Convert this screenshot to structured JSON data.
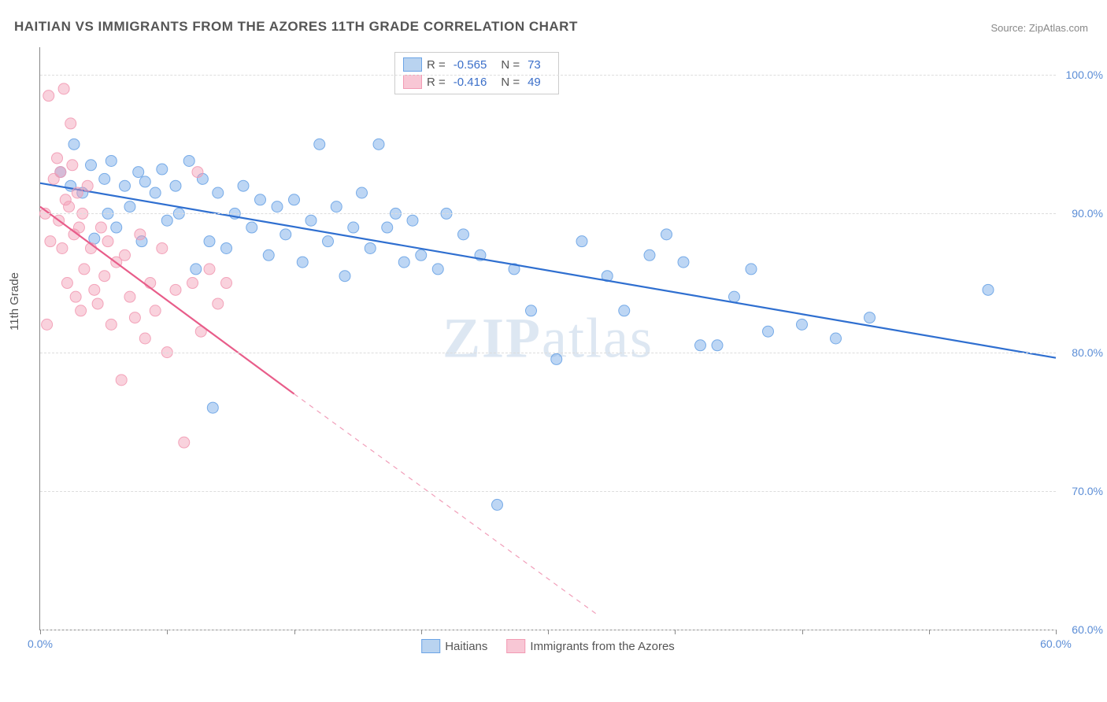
{
  "title": "HAITIAN VS IMMIGRANTS FROM THE AZORES 11TH GRADE CORRELATION CHART",
  "source_label": "Source: ZipAtlas.com",
  "ylabel": "11th Grade",
  "watermark": {
    "a": "ZIP",
    "b": "atlas"
  },
  "chart": {
    "type": "scatter",
    "background_color": "#ffffff",
    "grid_color": "#dddddd",
    "axis_color": "#888888",
    "xlim": [
      0,
      60
    ],
    "ylim": [
      60,
      102
    ],
    "ytick_step": 10,
    "yticks": [
      60,
      70,
      80,
      90,
      100
    ],
    "ytick_labels": [
      "60.0%",
      "70.0%",
      "80.0%",
      "90.0%",
      "100.0%"
    ],
    "xticks": [
      0,
      7.5,
      15,
      22.5,
      30,
      37.5,
      45,
      52.5,
      60
    ],
    "xtick_labels": [
      "0.0%",
      "",
      "",
      "",
      "",
      "",
      "",
      "",
      "60.0%"
    ],
    "label_fontsize": 14,
    "tick_color": "#5b8dd6",
    "marker_radius": 7,
    "marker_opacity": 0.45,
    "marker_stroke_opacity": 0.9,
    "line_width": 2.2
  },
  "series": [
    {
      "name": "Haitians",
      "color": "#6ca4e6",
      "line_color": "#2f6fd0",
      "swatch_fill": "#b9d3f0",
      "swatch_border": "#6ca4e6",
      "R": "-0.565",
      "N": "73",
      "trend": {
        "x1": 0,
        "y1": 92.2,
        "x2": 60,
        "y2": 79.6,
        "dashed_from_x": 60
      },
      "points": [
        [
          1.2,
          93.0
        ],
        [
          1.8,
          92.0
        ],
        [
          2.0,
          95.0
        ],
        [
          2.5,
          91.5
        ],
        [
          3.0,
          93.5
        ],
        [
          3.2,
          88.2
        ],
        [
          3.8,
          92.5
        ],
        [
          4.0,
          90.0
        ],
        [
          4.2,
          93.8
        ],
        [
          4.5,
          89.0
        ],
        [
          5.0,
          92.0
        ],
        [
          5.3,
          90.5
        ],
        [
          5.8,
          93.0
        ],
        [
          6.0,
          88.0
        ],
        [
          6.2,
          92.3
        ],
        [
          6.8,
          91.5
        ],
        [
          7.2,
          93.2
        ],
        [
          7.5,
          89.5
        ],
        [
          8.0,
          92.0
        ],
        [
          8.2,
          90.0
        ],
        [
          8.8,
          93.8
        ],
        [
          9.2,
          86.0
        ],
        [
          9.6,
          92.5
        ],
        [
          10.0,
          88.0
        ],
        [
          10.5,
          91.5
        ],
        [
          11.0,
          87.5
        ],
        [
          11.5,
          90.0
        ],
        [
          12.0,
          92.0
        ],
        [
          12.5,
          89.0
        ],
        [
          13.0,
          91.0
        ],
        [
          13.5,
          87.0
        ],
        [
          14.0,
          90.5
        ],
        [
          14.5,
          88.5
        ],
        [
          15.0,
          91.0
        ],
        [
          15.5,
          86.5
        ],
        [
          16.0,
          89.5
        ],
        [
          16.5,
          95.0
        ],
        [
          17.0,
          88.0
        ],
        [
          17.5,
          90.5
        ],
        [
          18.0,
          85.5
        ],
        [
          18.5,
          89.0
        ],
        [
          19.0,
          91.5
        ],
        [
          19.5,
          87.5
        ],
        [
          20.0,
          95.0
        ],
        [
          20.5,
          89.0
        ],
        [
          21.0,
          90.0
        ],
        [
          21.5,
          86.5
        ],
        [
          22.0,
          89.5
        ],
        [
          22.5,
          87.0
        ],
        [
          23.5,
          86.0
        ],
        [
          24.0,
          90.0
        ],
        [
          25.0,
          88.5
        ],
        [
          26.0,
          87.0
        ],
        [
          27.0,
          69.0
        ],
        [
          28.0,
          86.0
        ],
        [
          29.0,
          83.0
        ],
        [
          30.5,
          79.5
        ],
        [
          32.0,
          88.0
        ],
        [
          33.5,
          85.5
        ],
        [
          34.5,
          83.0
        ],
        [
          36.0,
          87.0
        ],
        [
          37.0,
          88.5
        ],
        [
          38.0,
          86.5
        ],
        [
          39.0,
          80.5
        ],
        [
          40.0,
          80.5
        ],
        [
          41.0,
          84.0
        ],
        [
          42.0,
          86.0
        ],
        [
          43.0,
          81.5
        ],
        [
          45.0,
          82.0
        ],
        [
          47.0,
          81.0
        ],
        [
          49.0,
          82.5
        ],
        [
          56.0,
          84.5
        ],
        [
          10.2,
          76.0
        ]
      ]
    },
    {
      "name": "Immigrants from the Azores",
      "color": "#f29bb4",
      "line_color": "#e85d8a",
      "swatch_fill": "#f8c7d5",
      "swatch_border": "#f29bb4",
      "R": "-0.416",
      "N": "49",
      "trend": {
        "x1": 0,
        "y1": 90.5,
        "x2": 15,
        "y2": 77.0,
        "dashed_from_x": 15,
        "x2_ext": 33,
        "y2_ext": 61.0
      },
      "points": [
        [
          0.3,
          90.0
        ],
        [
          0.5,
          98.5
        ],
        [
          0.6,
          88.0
        ],
        [
          0.8,
          92.5
        ],
        [
          1.0,
          94.0
        ],
        [
          1.1,
          89.5
        ],
        [
          1.2,
          93.0
        ],
        [
          1.3,
          87.5
        ],
        [
          1.4,
          99.0
        ],
        [
          1.5,
          91.0
        ],
        [
          1.6,
          85.0
        ],
        [
          1.7,
          90.5
        ],
        [
          1.8,
          96.5
        ],
        [
          1.9,
          93.5
        ],
        [
          2.0,
          88.5
        ],
        [
          2.1,
          84.0
        ],
        [
          2.2,
          91.5
        ],
        [
          2.3,
          89.0
        ],
        [
          2.4,
          83.0
        ],
        [
          2.5,
          90.0
        ],
        [
          2.6,
          86.0
        ],
        [
          2.8,
          92.0
        ],
        [
          3.0,
          87.5
        ],
        [
          3.2,
          84.5
        ],
        [
          3.4,
          83.5
        ],
        [
          3.6,
          89.0
        ],
        [
          3.8,
          85.5
        ],
        [
          4.0,
          88.0
        ],
        [
          4.2,
          82.0
        ],
        [
          4.5,
          86.5
        ],
        [
          4.8,
          78.0
        ],
        [
          5.0,
          87.0
        ],
        [
          5.3,
          84.0
        ],
        [
          5.6,
          82.5
        ],
        [
          5.9,
          88.5
        ],
        [
          6.2,
          81.0
        ],
        [
          6.5,
          85.0
        ],
        [
          6.8,
          83.0
        ],
        [
          7.2,
          87.5
        ],
        [
          7.5,
          80.0
        ],
        [
          8.0,
          84.5
        ],
        [
          8.5,
          73.5
        ],
        [
          9.0,
          85.0
        ],
        [
          9.3,
          93.0
        ],
        [
          9.5,
          81.5
        ],
        [
          10.0,
          86.0
        ],
        [
          10.5,
          83.5
        ],
        [
          11.0,
          85.0
        ],
        [
          0.4,
          82.0
        ]
      ]
    }
  ],
  "bottom_legend": [
    {
      "swatch_fill": "#b9d3f0",
      "swatch_border": "#6ca4e6",
      "label": "Haitians"
    },
    {
      "swatch_fill": "#f8c7d5",
      "swatch_border": "#f29bb4",
      "label": "Immigrants from the Azores"
    }
  ],
  "stats_labels": {
    "R": "R =",
    "N": "N ="
  }
}
